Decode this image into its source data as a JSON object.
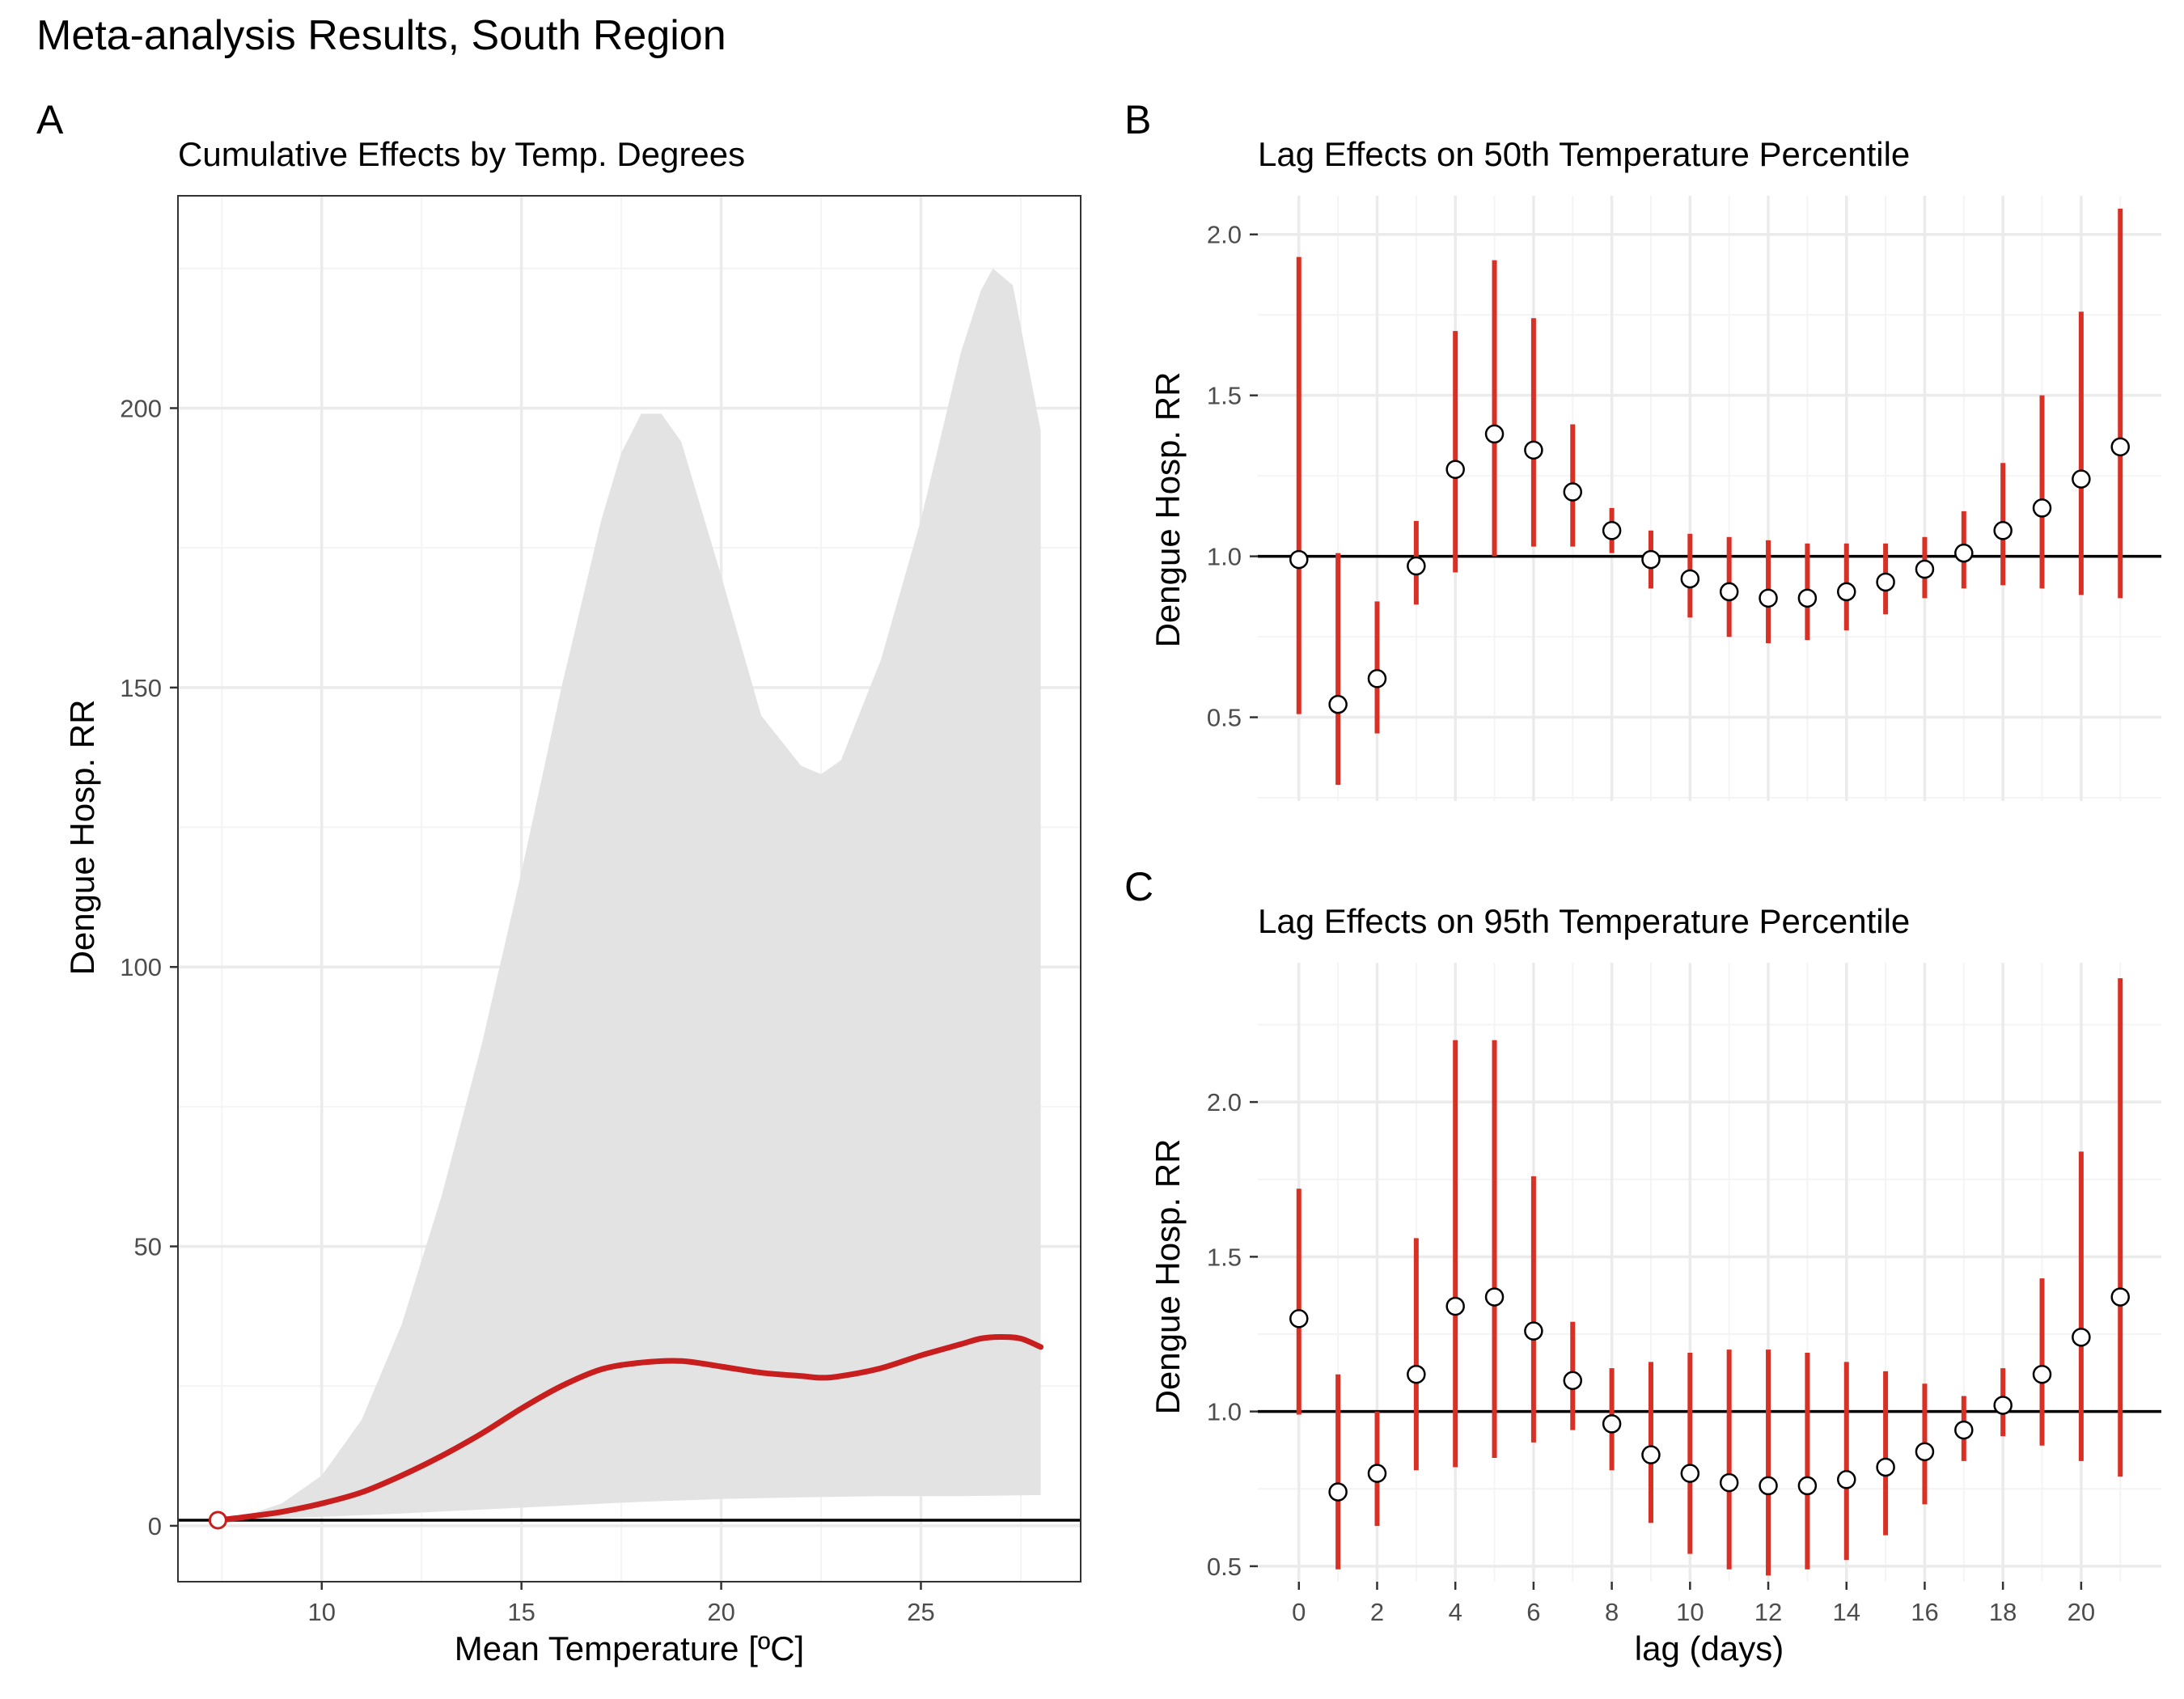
{
  "figure": {
    "title": "Meta-analysis Results, South Region",
    "colors": {
      "background": "#ffffff",
      "grid_major": "#ebebeb",
      "grid_minor": "#f4f4f4",
      "band": "#e3e3e3",
      "line": "#c81e1e",
      "errorbar": "#d93025",
      "reference": "#000000",
      "point_fill": "#ffffff",
      "point_edge": "#000000"
    }
  },
  "chart_data": [
    {
      "panel": "A",
      "type": "area",
      "title": "Cumulative Effects by Temp. Degrees",
      "xlabel": "Mean Temperature [ºC]",
      "ylabel": "Dengue Hosp. RR",
      "xlim": [
        6.4,
        29.0
      ],
      "ylim": [
        -10,
        238
      ],
      "xticks": [
        10,
        15,
        20,
        25
      ],
      "yticks": [
        0,
        50,
        100,
        150,
        200
      ],
      "reference_line": 1,
      "reference_point": {
        "x": 7.4,
        "y": 1
      },
      "series": [
        {
          "role": "estimate",
          "x": [
            7.4,
            8,
            9,
            10,
            11,
            12,
            13,
            14,
            15,
            16,
            17,
            18,
            19,
            20,
            21,
            22,
            22.5,
            23,
            24,
            25,
            26,
            26.5,
            27,
            27.5,
            28
          ],
          "y": [
            1,
            1.5,
            2.5,
            4,
            6,
            9,
            12.5,
            16.5,
            21,
            25,
            28,
            29.2,
            29.5,
            28.5,
            27.4,
            26.8,
            26.5,
            26.8,
            28.2,
            30.5,
            32.5,
            33.5,
            33.8,
            33.5,
            32
          ]
        },
        {
          "role": "ci_upper",
          "x": [
            7.4,
            8,
            9,
            10,
            11,
            12,
            13,
            14,
            15,
            16,
            17,
            17.5,
            18,
            18.5,
            19,
            20,
            21,
            22,
            22.5,
            23,
            24,
            25,
            26,
            26.5,
            26.8,
            27.3,
            28
          ],
          "y": [
            1,
            1.6,
            4,
            9,
            19,
            36,
            59,
            86,
            117,
            150,
            180,
            192,
            199,
            199,
            194,
            170,
            145,
            136,
            134.5,
            137,
            155,
            180,
            210,
            221,
            225,
            222,
            196
          ]
        },
        {
          "role": "ci_lower",
          "x": [
            7.4,
            8,
            10,
            12,
            14,
            16,
            18,
            20,
            22,
            24,
            26,
            28
          ],
          "y": [
            1,
            1.1,
            1.6,
            2.2,
            2.9,
            3.6,
            4.3,
            4.8,
            5.1,
            5.3,
            5.3,
            5.5
          ]
        }
      ]
    },
    {
      "panel": "B",
      "type": "scatter",
      "title": "Lag Effects on 50th Temperature Percentile",
      "xlabel": "",
      "ylabel": "Dengue Hosp. RR",
      "xlim": [
        -1.05,
        22.05
      ],
      "ylim": [
        0.24,
        2.12
      ],
      "yticks": [
        0.5,
        1.0,
        1.5,
        2.0
      ],
      "reference_line": 1.0,
      "x": [
        0,
        1,
        2,
        3,
        4,
        5,
        6,
        7,
        8,
        9,
        10,
        11,
        12,
        13,
        14,
        15,
        16,
        17,
        18,
        19,
        20,
        21
      ],
      "estimate": [
        0.99,
        0.54,
        0.62,
        0.97,
        1.27,
        1.38,
        1.33,
        1.2,
        1.08,
        0.99,
        0.93,
        0.89,
        0.87,
        0.87,
        0.89,
        0.92,
        0.96,
        1.01,
        1.08,
        1.15,
        1.24,
        1.34
      ],
      "lower": [
        0.51,
        0.29,
        0.45,
        0.85,
        0.95,
        1.0,
        1.03,
        1.03,
        1.01,
        0.9,
        0.81,
        0.75,
        0.73,
        0.74,
        0.77,
        0.82,
        0.87,
        0.9,
        0.91,
        0.9,
        0.88,
        0.87
      ],
      "upper": [
        1.93,
        1.01,
        0.86,
        1.11,
        1.7,
        1.92,
        1.74,
        1.41,
        1.15,
        1.08,
        1.07,
        1.06,
        1.05,
        1.04,
        1.04,
        1.04,
        1.06,
        1.14,
        1.29,
        1.5,
        1.76,
        2.08
      ]
    },
    {
      "panel": "C",
      "type": "scatter",
      "title": "Lag Effects on 95th Temperature Percentile",
      "xlabel": "lag (days)",
      "ylabel": "Dengue Hosp. RR",
      "xlim": [
        -1.05,
        22.05
      ],
      "ylim": [
        0.45,
        2.45
      ],
      "xticks": [
        0,
        2,
        4,
        6,
        8,
        10,
        12,
        14,
        16,
        18,
        20
      ],
      "yticks": [
        0.5,
        1.0,
        1.5,
        2.0
      ],
      "reference_line": 1.0,
      "x": [
        0,
        1,
        2,
        3,
        4,
        5,
        6,
        7,
        8,
        9,
        10,
        11,
        12,
        13,
        14,
        15,
        16,
        17,
        18,
        19,
        20,
        21
      ],
      "estimate": [
        1.3,
        0.74,
        0.8,
        1.12,
        1.34,
        1.37,
        1.26,
        1.1,
        0.96,
        0.86,
        0.8,
        0.77,
        0.76,
        0.76,
        0.78,
        0.82,
        0.87,
        0.94,
        1.02,
        1.12,
        1.24,
        1.37
      ],
      "lower": [
        0.99,
        0.49,
        0.63,
        0.81,
        0.82,
        0.85,
        0.9,
        0.94,
        0.81,
        0.64,
        0.54,
        0.49,
        0.47,
        0.49,
        0.52,
        0.6,
        0.7,
        0.84,
        0.92,
        0.89,
        0.84,
        0.79
      ],
      "upper": [
        1.72,
        1.12,
        1.0,
        1.56,
        2.2,
        2.2,
        1.76,
        1.29,
        1.14,
        1.16,
        1.19,
        1.2,
        1.2,
        1.19,
        1.16,
        1.13,
        1.09,
        1.05,
        1.14,
        1.43,
        1.84,
        2.4
      ]
    }
  ]
}
